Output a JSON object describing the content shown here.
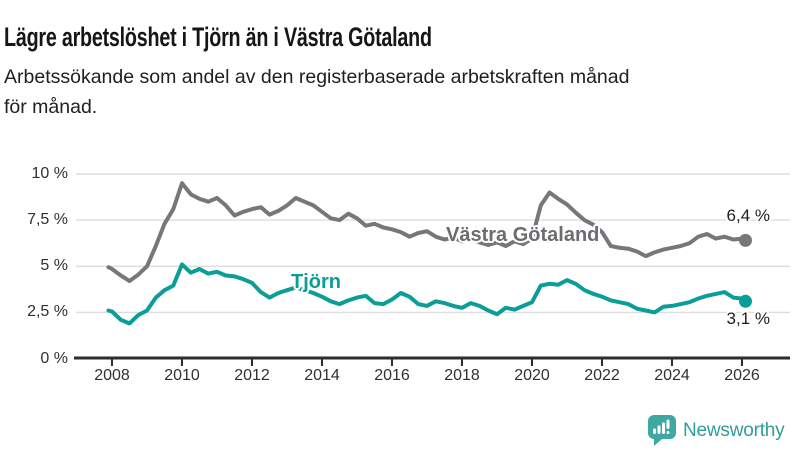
{
  "header": {
    "title": "Lägre arbetslöshet i Tjörn än i Västra Götaland",
    "subtitle_line1": "Arbetssökande som andel av den registerbaserade arbetskraften månad",
    "subtitle_line2": "för månad."
  },
  "chart_data": {
    "type": "line",
    "title": "Lägre arbetslöshet i Tjörn än i Västra Götaland",
    "subtitle": "Arbetssökande som andel av den registerbaserade arbetskraften månad för månad.",
    "xlabel": "",
    "ylabel": "",
    "grid": "horizontal",
    "legend_position": "inline-labels",
    "xlim": [
      2007.8,
      2026.4
    ],
    "ylim": [
      0,
      10.3
    ],
    "x_ticks": [
      "2008",
      "2010",
      "2012",
      "2014",
      "2016",
      "2018",
      "2020",
      "2022",
      "2024",
      "2026"
    ],
    "y_ticks": [
      {
        "label": "10 %",
        "value": 10
      },
      {
        "label": "7,5 %",
        "value": 7.5
      },
      {
        "label": "5 %",
        "value": 5
      },
      {
        "label": "2,5 %",
        "value": 2.5
      },
      {
        "label": "0 %",
        "value": 0
      }
    ],
    "colors": {
      "grid": "#dddddd",
      "axis": "#2d2d2d",
      "tick_text": "#303030"
    },
    "x": [
      2007.9,
      2008,
      2008.25,
      2008.5,
      2008.75,
      2009,
      2009.25,
      2009.5,
      2009.75,
      2010,
      2010.25,
      2010.5,
      2010.75,
      2011,
      2011.25,
      2011.5,
      2011.75,
      2012,
      2012.25,
      2012.5,
      2012.75,
      2013,
      2013.25,
      2013.5,
      2013.75,
      2014,
      2014.25,
      2014.5,
      2014.75,
      2015,
      2015.25,
      2015.5,
      2015.75,
      2016,
      2016.25,
      2016.5,
      2016.75,
      2017,
      2017.25,
      2017.5,
      2017.75,
      2018,
      2018.25,
      2018.5,
      2018.75,
      2019,
      2019.25,
      2019.5,
      2019.75,
      2020,
      2020.25,
      2020.5,
      2020.75,
      2021,
      2021.25,
      2021.5,
      2021.75,
      2022,
      2022.25,
      2022.5,
      2022.75,
      2023,
      2023.25,
      2023.5,
      2023.75,
      2024,
      2024.25,
      2024.5,
      2024.75,
      2025,
      2025.25,
      2025.5,
      2025.75,
      2026,
      2026.1
    ],
    "series": [
      {
        "id": "vastra-gotaland",
        "name": "Västra Götaland",
        "color": "#76767b",
        "label_color": "#6c6c71",
        "end_label": "6,4 %",
        "end_value": 6.4,
        "values": [
          4.95,
          4.85,
          4.5,
          4.2,
          4.55,
          5,
          6.1,
          7.3,
          8.1,
          9.5,
          8.9,
          8.65,
          8.5,
          8.7,
          8.3,
          7.75,
          7.95,
          8.1,
          8.2,
          7.8,
          8,
          8.3,
          8.7,
          8.5,
          8.3,
          7.95,
          7.6,
          7.5,
          7.85,
          7.6,
          7.2,
          7.3,
          7.1,
          7,
          6.85,
          6.6,
          6.8,
          6.9,
          6.6,
          6.45,
          6.55,
          6.35,
          6.5,
          6.3,
          6.15,
          6.3,
          6.1,
          6.35,
          6.2,
          6.5,
          8.3,
          9,
          8.65,
          8.35,
          7.9,
          7.5,
          7.25,
          6.85,
          6.1,
          6,
          5.95,
          5.8,
          5.55,
          5.75,
          5.9,
          6,
          6.1,
          6.25,
          6.6,
          6.75,
          6.5,
          6.6,
          6.45,
          6.5,
          6.4
        ]
      },
      {
        "id": "tjorn",
        "name": "Tjörn",
        "color": "#0a9e96",
        "label_color": "#0a9e96",
        "end_label": "3,1 %",
        "end_value": 3.1,
        "values": [
          2.6,
          2.55,
          2.1,
          1.9,
          2.35,
          2.6,
          3.3,
          3.7,
          3.95,
          5.1,
          4.65,
          4.85,
          4.6,
          4.7,
          4.5,
          4.45,
          4.3,
          4.1,
          3.6,
          3.3,
          3.55,
          3.7,
          3.85,
          3.7,
          3.55,
          3.35,
          3.1,
          2.95,
          3.15,
          3.3,
          3.4,
          3,
          2.95,
          3.2,
          3.55,
          3.35,
          2.95,
          2.85,
          3.1,
          3,
          2.85,
          2.75,
          3,
          2.85,
          2.6,
          2.4,
          2.75,
          2.65,
          2.85,
          3.05,
          3.95,
          4.05,
          4,
          4.25,
          4.05,
          3.7,
          3.5,
          3.35,
          3.15,
          3.05,
          2.95,
          2.7,
          2.6,
          2.5,
          2.8,
          2.85,
          2.95,
          3.05,
          3.25,
          3.4,
          3.5,
          3.6,
          3.3,
          3.25,
          3.1
        ]
      }
    ]
  },
  "footer": {
    "brand": "Newsworthy",
    "brand_color": "#2f9e99",
    "icon_color": "#3fa8a3"
  }
}
